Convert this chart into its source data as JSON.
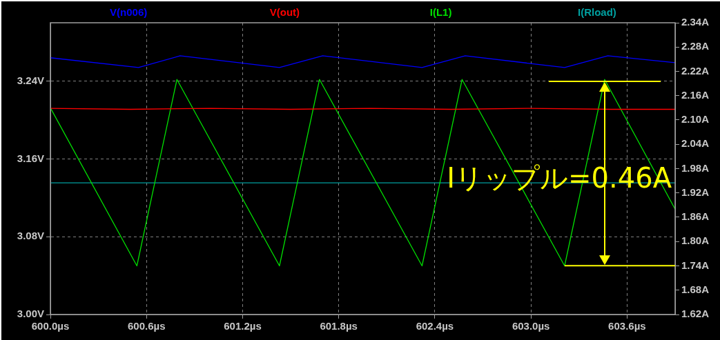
{
  "chart_data": {
    "type": "line",
    "xlim": [
      600,
      603.9
    ],
    "xticks": [
      {
        "value": 600.0,
        "label": "600.0µs"
      },
      {
        "value": 600.6,
        "label": "600.6µs"
      },
      {
        "value": 601.2,
        "label": "601.2µs"
      },
      {
        "value": 601.8,
        "label": "601.8µs"
      },
      {
        "value": 602.4,
        "label": "602.4µs"
      },
      {
        "value": 603.0,
        "label": "603.0µs"
      },
      {
        "value": 603.6,
        "label": "603.6µs"
      }
    ],
    "ylim": [
      3.0,
      3.3
    ],
    "yticks": [
      {
        "value": 3.0,
        "label": "3.00V"
      },
      {
        "value": 3.08,
        "label": "3.08V"
      },
      {
        "value": 3.16,
        "label": "3.16V"
      },
      {
        "value": 3.24,
        "label": "3.24V"
      }
    ],
    "y2lim": [
      1.62,
      2.34
    ],
    "y2ticks": [
      {
        "value": 1.62,
        "label": "1.62A"
      },
      {
        "value": 1.68,
        "label": "1.68A"
      },
      {
        "value": 1.74,
        "label": "1.74A"
      },
      {
        "value": 1.8,
        "label": "1.80A"
      },
      {
        "value": 1.86,
        "label": "1.86A"
      },
      {
        "value": 1.92,
        "label": "1.92A"
      },
      {
        "value": 1.98,
        "label": "1.98A"
      },
      {
        "value": 2.04,
        "label": "2.04A"
      },
      {
        "value": 2.1,
        "label": "2.10A"
      },
      {
        "value": 2.16,
        "label": "2.16A"
      },
      {
        "value": 2.22,
        "label": "2.22A"
      },
      {
        "value": 2.28,
        "label": "2.28A"
      },
      {
        "value": 2.34,
        "label": "2.34A"
      }
    ],
    "grid": true,
    "legend": "top",
    "series": [
      {
        "name": "V(n006)",
        "color": "#0000ff",
        "x": [
          600.0,
          600.55,
          600.81,
          601.43,
          601.7,
          602.32,
          602.59,
          603.21,
          603.48,
          603.9
        ],
        "values": [
          3.264,
          3.254,
          3.266,
          3.254,
          3.266,
          3.254,
          3.266,
          3.254,
          3.266,
          3.259
        ]
      },
      {
        "name": "V(out)",
        "color": "#ff0000",
        "x": [
          600.0,
          600.5,
          601.0,
          601.5,
          602.0,
          602.5,
          603.0,
          603.5,
          603.9
        ],
        "values": [
          3.212,
          3.211,
          3.212,
          3.211,
          3.212,
          3.211,
          3.212,
          3.211,
          3.211
        ]
      },
      {
        "name": "I(L1)",
        "color": "#00e000",
        "axis": "y2",
        "x": [
          600.0,
          600.54,
          600.79,
          601.43,
          601.68,
          602.32,
          602.57,
          603.21,
          603.46,
          603.9
        ],
        "values": [
          2.13,
          1.74,
          2.2,
          1.74,
          2.2,
          1.74,
          2.2,
          1.74,
          2.2,
          1.88
        ]
      },
      {
        "name": "I(Rload)",
        "color": "#00a0a0",
        "axis": "y2",
        "x": [
          600.0,
          601.0,
          602.0,
          603.0,
          603.9
        ],
        "values": [
          1.945,
          1.945,
          1.945,
          1.945,
          1.945
        ]
      }
    ],
    "annotations": [
      "Iリップル=0.46A"
    ]
  }
}
